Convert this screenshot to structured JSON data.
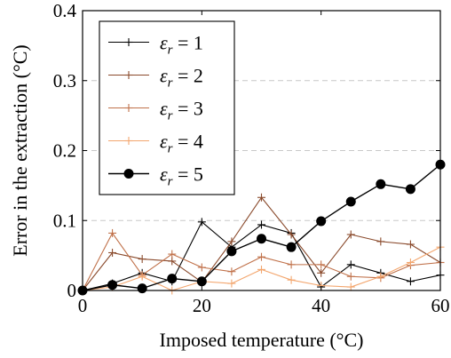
{
  "chart_data": {
    "type": "line",
    "xlabel": "Imposed temperature (°C)",
    "ylabel": "Error in the extraction (°C)",
    "xlim": [
      0,
      60
    ],
    "ylim": [
      0,
      0.4
    ],
    "xticks": [
      0,
      20,
      40,
      60
    ],
    "yticks": [
      0,
      0.1,
      0.2,
      0.3,
      0.4
    ],
    "xtick_labels": [
      "0",
      "20",
      "40",
      "60"
    ],
    "ytick_labels": [
      "0",
      "0.1",
      "0.2",
      "0.3",
      "0.4"
    ],
    "grid": "horizontal dashed at 0.1, 0.2, 0.3",
    "legend_position": "top-left",
    "x": [
      0,
      5,
      10,
      15,
      20,
      25,
      30,
      35,
      40,
      45,
      50,
      55,
      60
    ],
    "series": [
      {
        "name": "εr = 1",
        "legend_main": "ε",
        "legend_sub": "r",
        "legend_rest": " = 1",
        "color": "#000000",
        "marker": "plus",
        "values": [
          0,
          0.01,
          0.025,
          0.013,
          0.098,
          0.062,
          0.094,
          0.082,
          0.005,
          0.037,
          0.025,
          0.013,
          0.022
        ]
      },
      {
        "name": "εr = 2",
        "legend_main": "ε",
        "legend_sub": "r",
        "legend_rest": " = 2",
        "color": "#8a4a2c",
        "marker": "plus",
        "values": [
          0,
          0.054,
          0.045,
          0.042,
          0.012,
          0.07,
          0.133,
          0.08,
          0.025,
          0.08,
          0.07,
          0.066,
          0.04
        ]
      },
      {
        "name": "εr = 3",
        "legend_main": "ε",
        "legend_sub": "r",
        "legend_rest": " = 3",
        "color": "#c0714a",
        "marker": "plus",
        "values": [
          0,
          0.082,
          0.022,
          0.052,
          0.033,
          0.027,
          0.048,
          0.037,
          0.037,
          0.02,
          0.018,
          0.036,
          0.04
        ]
      },
      {
        "name": "εr = 4",
        "legend_main": "ε",
        "legend_sub": "r",
        "legend_rest": " = 4",
        "color": "#f3a66e",
        "marker": "plus",
        "values": [
          0,
          0.005,
          0.02,
          0.0,
          0.013,
          0.01,
          0.03,
          0.015,
          0.007,
          0.005,
          0.02,
          0.04,
          0.062
        ]
      },
      {
        "name": "εr = 5",
        "legend_main": "ε",
        "legend_sub": "r",
        "legend_rest": " = 5",
        "color": "#000000",
        "marker": "circle",
        "values": [
          0,
          0.008,
          0.003,
          0.017,
          0.013,
          0.056,
          0.074,
          0.062,
          0.099,
          0.127,
          0.152,
          0.145,
          0.18
        ]
      }
    ]
  }
}
